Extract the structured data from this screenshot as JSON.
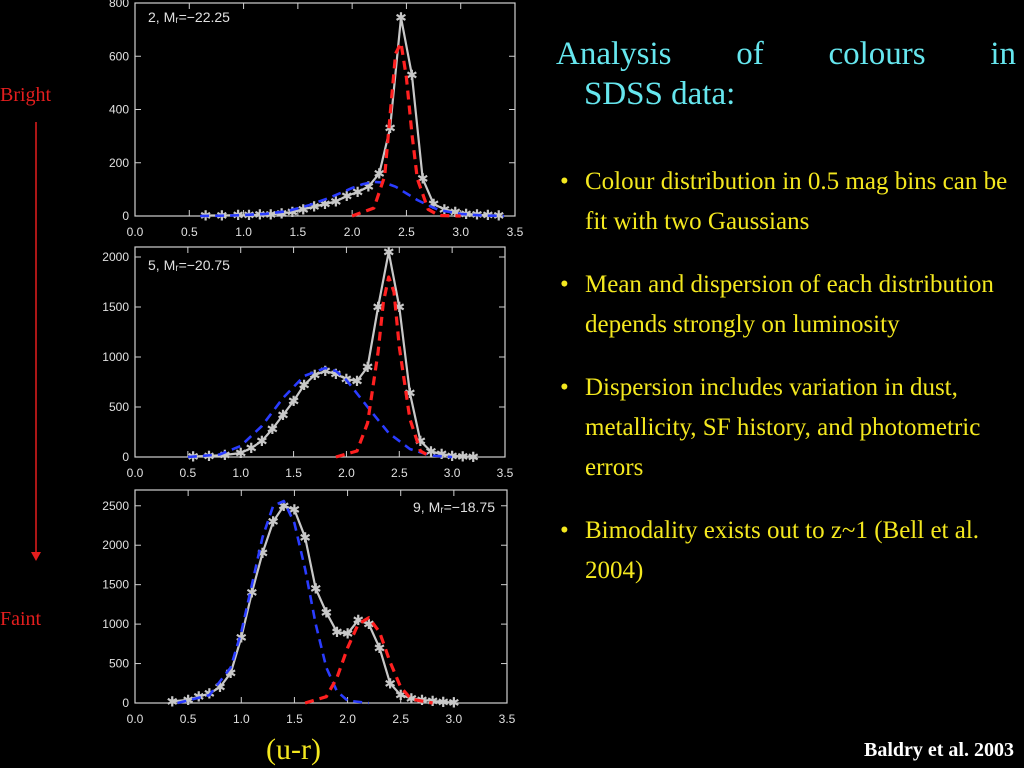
{
  "title_line1": [
    "Analysis",
    "of",
    "colours",
    "in"
  ],
  "title_line2": "SDSS data:",
  "bullets": [
    "Colour distribution in 0.5 mag bins can be fit with two Gaussians",
    "Mean and dispersion of each distribution depends strongly on luminosity",
    "Dispersion includes variation in dust, metallicity, SF history, and photometric errors",
    "Bimodality exists out to z~1 (Bell et al. 2004)"
  ],
  "arrow_top": "Bright",
  "arrow_bottom": "Faint",
  "xaxis_label": "(u-r)",
  "credit": "Baldry et al. 2003",
  "colors": {
    "title": "#66e6ee",
    "text": "#f4e81f",
    "arrow": "#e41e1e",
    "data": "#c8c8c8",
    "blue": "#2a3cff",
    "red": "#ff2020"
  },
  "chart_data": [
    {
      "type": "line",
      "label": "2, Mᵣ=−22.25",
      "xlim": [
        0,
        3.5
      ],
      "ylim": [
        0,
        800
      ],
      "xticks": [
        "0.0",
        "0.5",
        "1.0",
        "1.5",
        "2.0",
        "2.5",
        "3.0",
        "3.5"
      ],
      "yticks": [
        "0",
        "200",
        "400",
        "600",
        "800"
      ],
      "series": [
        {
          "x": [
            0.65,
            0.8,
            0.95,
            1.05,
            1.15,
            1.25,
            1.35,
            1.45,
            1.55,
            1.65,
            1.75,
            1.85,
            1.95,
            2.05,
            2.15,
            2.25,
            2.35,
            2.45,
            2.55,
            2.65,
            2.75,
            2.85,
            2.95,
            3.05,
            3.15,
            3.25,
            3.35
          ],
          "y": [
            2,
            2,
            3,
            3,
            5,
            6,
            10,
            15,
            25,
            35,
            45,
            55,
            75,
            90,
            110,
            160,
            330,
            745,
            530,
            140,
            45,
            25,
            15,
            8,
            5,
            3,
            2
          ]
        },
        {
          "x": [
            0.6,
            0.9,
            1.2,
            1.4,
            1.6,
            1.8,
            2.0,
            2.1,
            2.2,
            2.3,
            2.4,
            2.5,
            2.6,
            2.7,
            2.8,
            3.0,
            3.2,
            3.4
          ],
          "y": [
            0,
            2,
            8,
            18,
            40,
            70,
            105,
            120,
            128,
            125,
            110,
            85,
            60,
            40,
            22,
            8,
            2,
            0
          ]
        },
        {
          "x": [
            2.0,
            2.2,
            2.3,
            2.35,
            2.4,
            2.45,
            2.5,
            2.55,
            2.6,
            2.7,
            2.8,
            3.0
          ],
          "y": [
            0,
            30,
            150,
            380,
            610,
            650,
            520,
            310,
            140,
            25,
            2,
            0
          ]
        }
      ]
    },
    {
      "type": "line",
      "label": "5, Mᵣ=−20.75",
      "xlim": [
        0,
        3.5
      ],
      "ylim": [
        0,
        2100
      ],
      "xticks": [
        "0.0",
        "0.5",
        "1.0",
        "1.5",
        "2.0",
        "2.5",
        "3.0",
        "3.5"
      ],
      "yticks": [
        "0",
        "500",
        "1000",
        "1500",
        "2000"
      ],
      "series": [
        {
          "x": [
            0.55,
            0.7,
            0.85,
            1.0,
            1.1,
            1.2,
            1.3,
            1.4,
            1.5,
            1.6,
            1.7,
            1.8,
            1.9,
            2.0,
            2.1,
            2.2,
            2.3,
            2.4,
            2.5,
            2.6,
            2.7,
            2.8,
            2.9,
            3.0,
            3.1,
            3.2
          ],
          "y": [
            5,
            10,
            20,
            40,
            90,
            160,
            280,
            420,
            560,
            720,
            820,
            860,
            830,
            780,
            760,
            900,
            1500,
            2050,
            1500,
            640,
            160,
            55,
            30,
            12,
            5,
            2
          ]
        },
        {
          "x": [
            0.5,
            0.8,
            1.0,
            1.2,
            1.4,
            1.6,
            1.8,
            1.9,
            2.0,
            2.2,
            2.4,
            2.6,
            2.8,
            3.0
          ],
          "y": [
            0,
            25,
            110,
            310,
            590,
            810,
            890,
            860,
            770,
            500,
            240,
            80,
            15,
            0
          ]
        },
        {
          "x": [
            1.9,
            2.1,
            2.2,
            2.3,
            2.35,
            2.4,
            2.45,
            2.5,
            2.6,
            2.7,
            2.8
          ],
          "y": [
            0,
            60,
            340,
            1050,
            1550,
            1800,
            1650,
            1100,
            380,
            60,
            0
          ]
        }
      ]
    },
    {
      "type": "line",
      "label": "9, Mᵣ=−18.75",
      "xlim": [
        0,
        3.5
      ],
      "ylim": [
        0,
        2700
      ],
      "xticks": [
        "0.0",
        "0.5",
        "1.0",
        "1.5",
        "2.0",
        "2.5",
        "3.0",
        "3.5"
      ],
      "yticks": [
        "0",
        "500",
        "1000",
        "1500",
        "2000",
        "2500"
      ],
      "series": [
        {
          "x": [
            0.35,
            0.5,
            0.6,
            0.7,
            0.8,
            0.9,
            1.0,
            1.1,
            1.2,
            1.3,
            1.4,
            1.5,
            1.6,
            1.7,
            1.8,
            1.9,
            2.0,
            2.1,
            2.2,
            2.3,
            2.4,
            2.5,
            2.6,
            2.7,
            2.8,
            2.9,
            3.0
          ],
          "y": [
            20,
            40,
            80,
            120,
            200,
            380,
            830,
            1400,
            1900,
            2300,
            2500,
            2450,
            2100,
            1450,
            1150,
            900,
            880,
            1050,
            1000,
            700,
            250,
            100,
            60,
            40,
            25,
            15,
            5
          ]
        },
        {
          "x": [
            0.4,
            0.7,
            0.9,
            1.0,
            1.1,
            1.2,
            1.3,
            1.4,
            1.5,
            1.6,
            1.7,
            1.8,
            1.9,
            2.0,
            2.2
          ],
          "y": [
            0,
            100,
            450,
            900,
            1500,
            2100,
            2500,
            2560,
            2280,
            1700,
            1000,
            450,
            150,
            30,
            0
          ]
        },
        {
          "x": [
            1.6,
            1.8,
            1.9,
            2.0,
            2.1,
            2.2,
            2.3,
            2.4,
            2.5,
            2.6,
            2.8
          ],
          "y": [
            0,
            80,
            320,
            700,
            1000,
            1080,
            900,
            520,
            200,
            50,
            0
          ]
        }
      ]
    }
  ]
}
